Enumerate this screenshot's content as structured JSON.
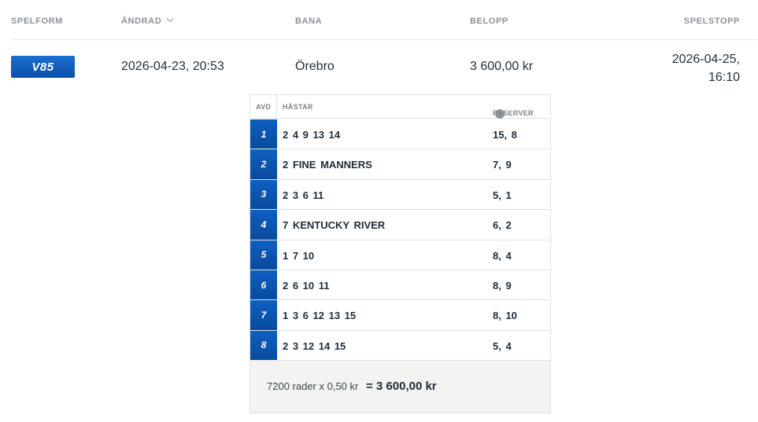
{
  "header": {
    "spelform": "SPELFORM",
    "andrad": "ÄNDRAD",
    "bana": "BANA",
    "belopp": "BELOPP",
    "spelstopp": "SPELSTOPP"
  },
  "row": {
    "game_badge": "V85",
    "changed": "2026-04-23, 20:53",
    "track": "Örebro",
    "amount": "3 600,00 kr",
    "stop_date": "2026-04-25,",
    "stop_time": "16:10"
  },
  "detail": {
    "col_avd": "AVD",
    "col_hastar": "HÄSTAR",
    "col_reserver": "RESERVER",
    "help_icon": "question-circle-icon",
    "legs": [
      {
        "avd": "1",
        "horses": "2 4 9 13 14",
        "reserves": "15, 8"
      },
      {
        "avd": "2",
        "horses": "2 FINE MANNERS",
        "reserves": "7, 9"
      },
      {
        "avd": "3",
        "horses": "2 3 6 11",
        "reserves": "5, 1"
      },
      {
        "avd": "4",
        "horses": "7 KENTUCKY RIVER",
        "reserves": "6, 2"
      },
      {
        "avd": "5",
        "horses": "1 7 10",
        "reserves": "8, 4"
      },
      {
        "avd": "6",
        "horses": "2 6 10 11",
        "reserves": "8, 9"
      },
      {
        "avd": "7",
        "horses": "1 3 6 12 13 15",
        "reserves": "8, 10"
      },
      {
        "avd": "8",
        "horses": "2 3 12 14 15",
        "reserves": "5, 4"
      }
    ],
    "summary_rows": "7200 rader x 0,50 kr",
    "summary_total": "= 3 600,00 kr"
  },
  "colors": {
    "brand_blue": "#0a4fa8",
    "header_text": "#8b929a",
    "summary_bg": "#f3f3f1"
  }
}
